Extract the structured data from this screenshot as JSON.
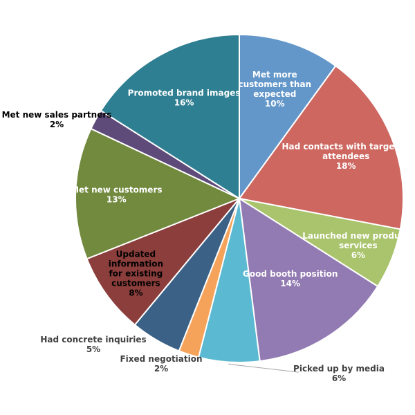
{
  "chart_data": {
    "type": "pie",
    "title": "",
    "legend": "none",
    "slices": [
      {
        "label": "Met more customers than expected",
        "lines": [
          "Met more",
          "customers than",
          "expected"
        ],
        "value": 10,
        "value_label": "10%",
        "color": "#6497c9"
      },
      {
        "label": "Had contacts with targeted attendees",
        "lines": [
          "Had contacts with targeted",
          "attendees"
        ],
        "value": 18,
        "value_label": "18%",
        "color": "#cd6760"
      },
      {
        "label": "Launched new products services",
        "lines": [
          "Launched new products",
          "services"
        ],
        "value": 6,
        "value_label": "6%",
        "color": "#a9c46c"
      },
      {
        "label": "Good booth position",
        "lines": [
          "Good booth position"
        ],
        "value": 14,
        "value_label": "14%",
        "color": "#927ab2"
      },
      {
        "label": "Picked up by media",
        "lines": [
          "Picked up by media"
        ],
        "value": 6,
        "value_label": "6%",
        "color": "#5bb9d2"
      },
      {
        "label": "Fixed negotiation",
        "lines": [
          "Fixed negotiation"
        ],
        "value": 2,
        "value_label": "2%",
        "color": "#f5a35b"
      },
      {
        "label": "Had concrete inquiries",
        "lines": [
          "Had concrete inquiries"
        ],
        "value": 5,
        "value_label": "5%",
        "color": "#3b6186"
      },
      {
        "label": "Updated information for existing customers",
        "lines": [
          "Updated",
          "information",
          "for existing",
          "customers"
        ],
        "value": 8,
        "value_label": "8%",
        "color": "#8b3e3b"
      },
      {
        "label": "Met new customers",
        "lines": [
          "Met new customers"
        ],
        "value": 13,
        "value_label": "13%",
        "color": "#728a3e"
      },
      {
        "label": "Met new sales partners",
        "lines": [
          "Met new sales partners"
        ],
        "value": 2,
        "value_label": "2%",
        "color": "#5f4b79"
      },
      {
        "label": "Promoted brand images",
        "lines": [
          "Promoted brand images"
        ],
        "value": 16,
        "value_label": "16%",
        "color": "#2f7f92"
      }
    ]
  }
}
